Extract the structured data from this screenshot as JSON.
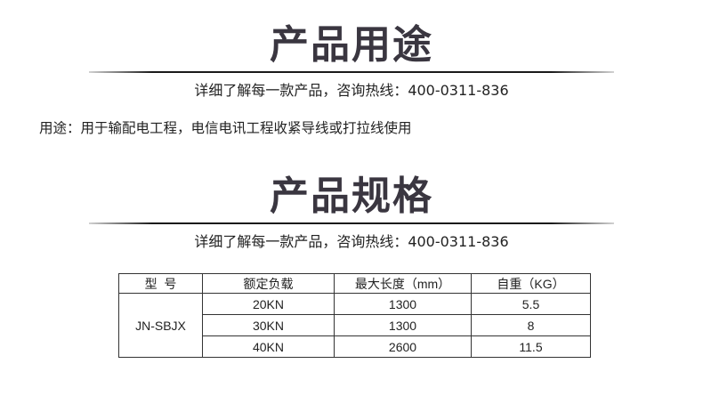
{
  "section1": {
    "title": "产品用途",
    "subtitle": "详细了解每一款产品，咨询热线：400-0311-836"
  },
  "usage": "用途：用于输配电工程，电信电讯工程收紧导线或打拉线使用",
  "section2": {
    "title": "产品规格",
    "subtitle": "详细了解每一款产品，咨询热线：400-0311-836"
  },
  "table": {
    "headers": [
      "型  号",
      "额定负载",
      "最大长度（mm）",
      "自重（KG）"
    ],
    "model": "JN-SBJX",
    "rows": [
      [
        "20KN",
        "1300",
        "5.5"
      ],
      [
        "30KN",
        "1300",
        "8"
      ],
      [
        "40KN",
        "2600",
        "11.5"
      ]
    ]
  }
}
